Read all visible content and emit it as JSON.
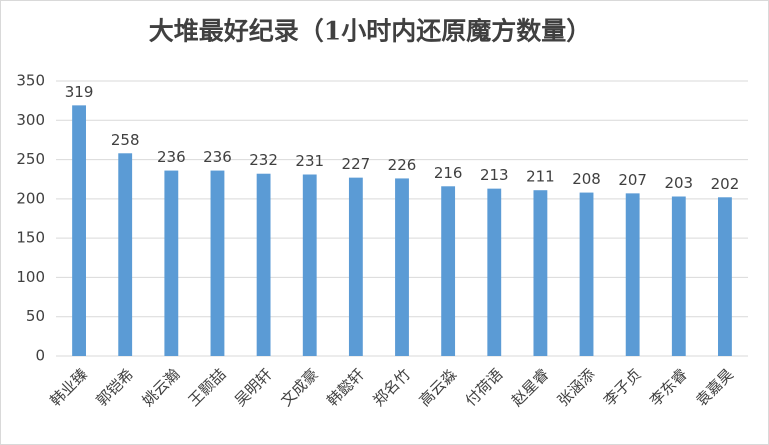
{
  "chart_data": {
    "type": "bar",
    "title": "大堆最好纪录（1小时内还原魔方数量）",
    "categories": [
      "韩业臻",
      "郭铠希",
      "姚云瀚",
      "王颢喆",
      "吴明轩",
      "文成豪",
      "韩懿轩",
      "郑名竹",
      "高云淼",
      "付荷语",
      "赵星睿",
      "张涵添",
      "李子贞",
      "李东睿",
      "袁嘉昊"
    ],
    "values": [
      319,
      258,
      236,
      236,
      232,
      231,
      227,
      226,
      216,
      213,
      211,
      208,
      207,
      203,
      202
    ],
    "color": "#5b9bd5",
    "ylim": [
      0,
      350
    ],
    "yticks": [
      0,
      50,
      100,
      150,
      200,
      250,
      300,
      350
    ],
    "grid": true
  }
}
